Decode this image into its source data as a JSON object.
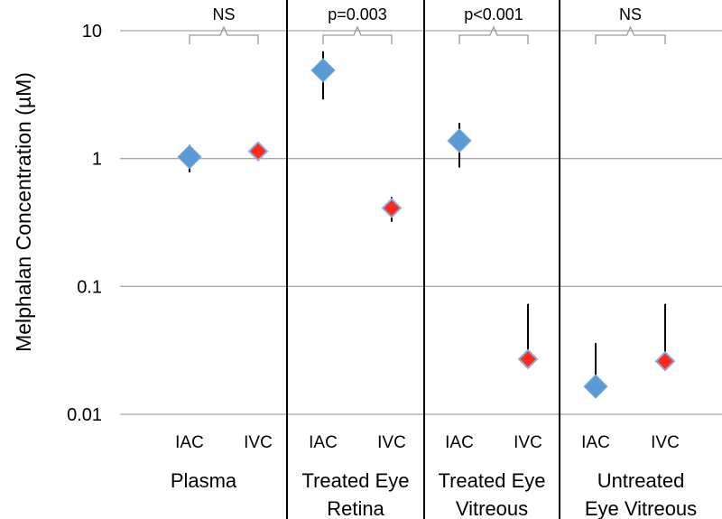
{
  "chart_data": {
    "type": "scatter",
    "title": "",
    "ylabel": "Melphalan Concentration (µM)",
    "yscale": "log",
    "ylim": [
      0.01,
      10
    ],
    "yticks": [
      {
        "value": 10,
        "label": "10"
      },
      {
        "value": 1,
        "label": "1"
      },
      {
        "value": 0.1,
        "label": "0.1"
      },
      {
        "value": 0.01,
        "label": "0.01"
      }
    ],
    "grid": true,
    "categories": [
      "IAC",
      "IVC",
      "IAC",
      "IVC",
      "IAC",
      "IVC",
      "IAC",
      "IVC"
    ],
    "groups": [
      {
        "lines": [
          "Plasma"
        ],
        "significance": "NS"
      },
      {
        "lines": [
          "Treated Eye",
          "Retina"
        ],
        "significance": "p=0.003"
      },
      {
        "lines": [
          "Treated Eye",
          "Vitreous"
        ],
        "significance": "p<0.001"
      },
      {
        "lines": [
          "Untreated",
          "Eye Vitreous"
        ],
        "significance": "NS"
      }
    ],
    "series": [
      {
        "label": "IAC",
        "color": "#5b9bd5",
        "points": [
          {
            "group": 0,
            "y": 1.03,
            "err_low": 0.78,
            "err_high": 1.28
          },
          {
            "group": 1,
            "y": 4.9,
            "err_low": 2.9,
            "err_high": 6.9
          },
          {
            "group": 2,
            "y": 1.38,
            "err_low": 0.85,
            "err_high": 1.9
          },
          {
            "group": 3,
            "y": 0.0165,
            "err_low": 0.0165,
            "err_high": 0.036
          }
        ]
      },
      {
        "label": "IVC",
        "color": "#ff2a1a",
        "points": [
          {
            "group": 0,
            "y": 1.14,
            "err_low": 0.96,
            "err_high": 1.3
          },
          {
            "group": 1,
            "y": 0.41,
            "err_low": 0.32,
            "err_high": 0.5
          },
          {
            "group": 2,
            "y": 0.027,
            "err_low": 0.027,
            "err_high": 0.073
          },
          {
            "group": 3,
            "y": 0.026,
            "err_low": 0.026,
            "err_high": 0.073
          }
        ]
      }
    ]
  }
}
